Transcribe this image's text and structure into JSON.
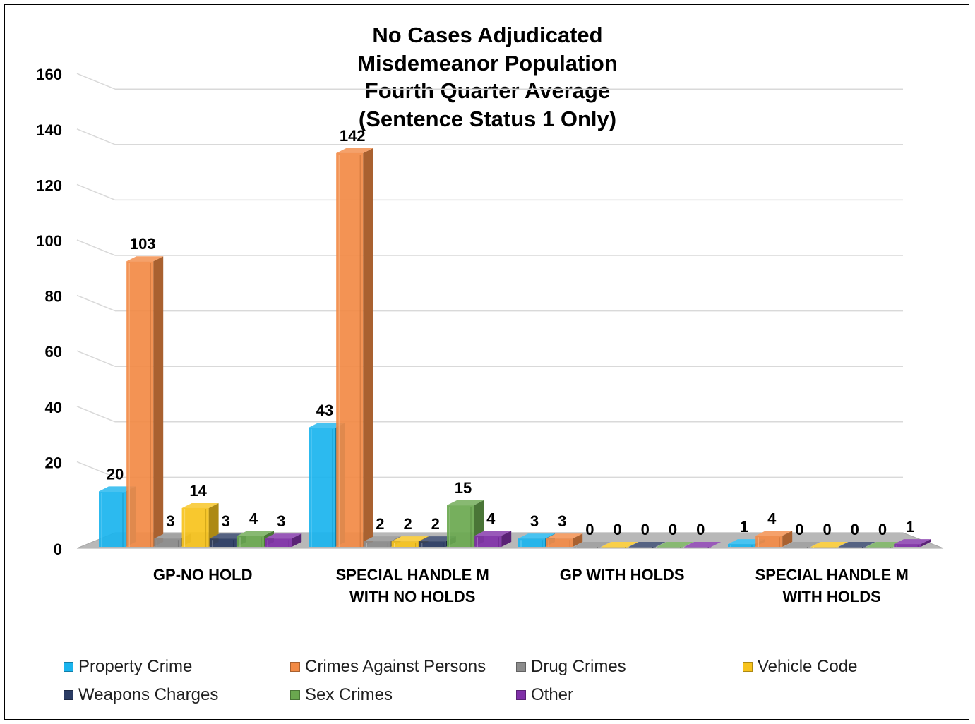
{
  "chart_data": {
    "type": "bar",
    "title_lines": [
      "No Cases Adjudicated",
      "Misdemeanor Population",
      "Fourth Quarter Average",
      "(Sentence Status 1 Only)"
    ],
    "xlabel": "",
    "ylabel": "",
    "ylim": [
      0,
      160
    ],
    "yticks": [
      0,
      20,
      40,
      60,
      80,
      100,
      120,
      140,
      160
    ],
    "grid": true,
    "legend_position": "bottom",
    "categories": [
      [
        "GP-NO HOLD"
      ],
      [
        "SPECIAL HANDLE M",
        "WITH NO HOLDS"
      ],
      [
        "GP WITH HOLDS"
      ],
      [
        "SPECIAL HANDLE M",
        "WITH HOLDS"
      ]
    ],
    "series": [
      {
        "name": "Property Crime",
        "color": "#1ab4ee",
        "values": [
          20,
          43,
          3,
          1
        ]
      },
      {
        "name": "Crimes Against Persons",
        "color": "#f28a45",
        "values": [
          103,
          142,
          3,
          4
        ]
      },
      {
        "name": "Drug Crimes",
        "color": "#8c8c8c",
        "values": [
          3,
          2,
          0,
          0
        ]
      },
      {
        "name": "Vehicle Code",
        "color": "#f7c31c",
        "values": [
          14,
          2,
          0,
          0
        ]
      },
      {
        "name": "Weapons Charges",
        "color": "#2a3b63",
        "values": [
          3,
          2,
          0,
          0
        ]
      },
      {
        "name": "Sex Crimes",
        "color": "#6aa84f",
        "values": [
          4,
          15,
          0,
          0
        ]
      },
      {
        "name": "Other",
        "color": "#8030a8",
        "values": [
          3,
          4,
          0,
          1
        ]
      }
    ]
  }
}
